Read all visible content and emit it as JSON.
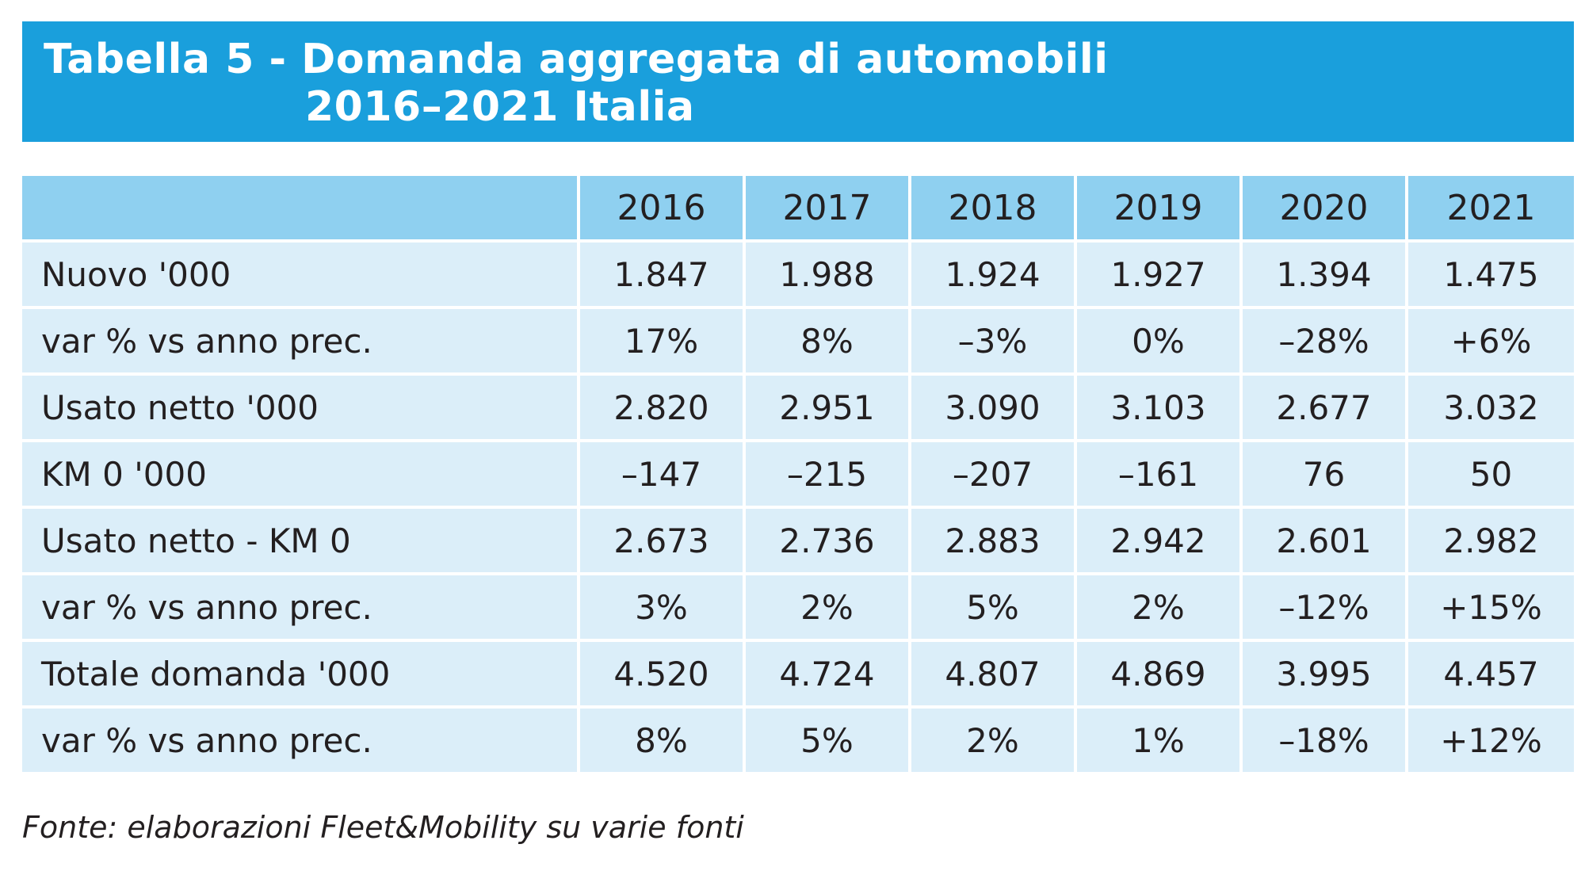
{
  "title": {
    "line1": "Tabella 5 - Domanda aggregata di automobili",
    "line2": "2016–2021 Italia"
  },
  "colors": {
    "banner": "#1a9fdc",
    "header_row": "#8fd0f0",
    "body_rows": "#dbeef9",
    "text": "#231f20"
  },
  "table": {
    "corner": "",
    "years": [
      "2016",
      "2017",
      "2018",
      "2019",
      "2020",
      "2021"
    ],
    "rows": [
      {
        "label": "Nuovo '000",
        "values": [
          "1.847",
          "1.988",
          "1.924",
          "1.927",
          "1.394",
          "1.475"
        ]
      },
      {
        "label": "var % vs anno prec.",
        "values": [
          "17%",
          "8%",
          "–3%",
          "0%",
          "–28%",
          "+6%"
        ]
      },
      {
        "label": "Usato netto '000",
        "values": [
          "2.820",
          "2.951",
          "3.090",
          "3.103",
          "2.677",
          "3.032"
        ]
      },
      {
        "label": "KM 0 '000",
        "values": [
          "–147",
          "–215",
          "–207",
          "–161",
          "76",
          "50"
        ]
      },
      {
        "label": "Usato netto - KM 0",
        "values": [
          "2.673",
          "2.736",
          "2.883",
          "2.942",
          "2.601",
          "2.982"
        ]
      },
      {
        "label": "var % vs anno prec.",
        "values": [
          "3%",
          "2%",
          "5%",
          "2%",
          "–12%",
          "+15%"
        ]
      },
      {
        "label": "Totale domanda '000",
        "values": [
          "4.520",
          "4.724",
          "4.807",
          "4.869",
          "3.995",
          "4.457"
        ]
      },
      {
        "label": "var % vs anno prec.",
        "values": [
          "8%",
          "5%",
          "2%",
          "1%",
          "–18%",
          "+12%"
        ]
      }
    ]
  },
  "source": "Fonte: elaborazioni Fleet&Mobility su varie fonti"
}
